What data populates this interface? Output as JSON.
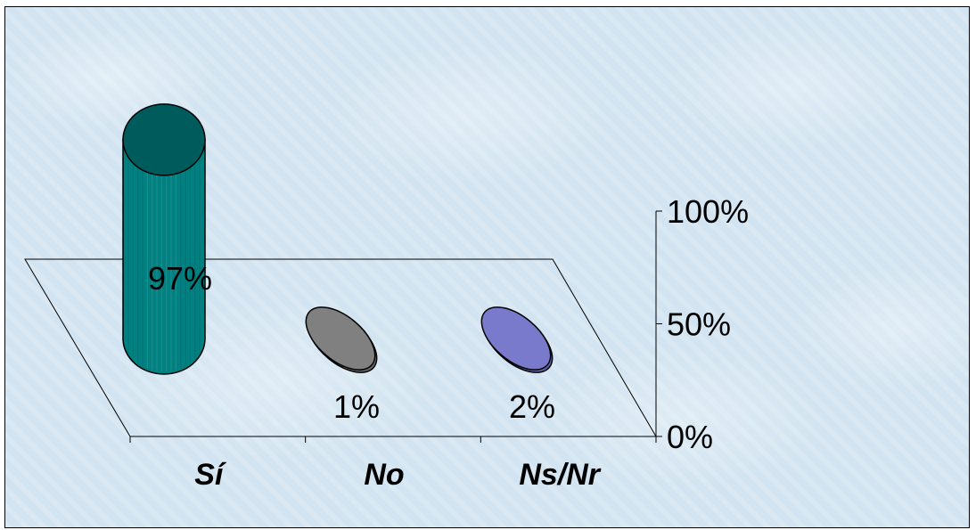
{
  "chart_data": {
    "type": "bar",
    "style": "3d-cylinder",
    "categories": [
      "Sí",
      "No",
      "Ns/Nr"
    ],
    "values": [
      97,
      1,
      2
    ],
    "data_labels": [
      "97%",
      "1%",
      "2%"
    ],
    "ylim": [
      0,
      100
    ],
    "y_ticks": [
      "0%",
      "50%",
      "100%"
    ],
    "y_tick_values": [
      0,
      50,
      100
    ],
    "colors": {
      "Sí": "#008080",
      "No": "#808080",
      "Ns/Nr": "#7a7acc"
    },
    "legend": "none",
    "grid": false
  }
}
